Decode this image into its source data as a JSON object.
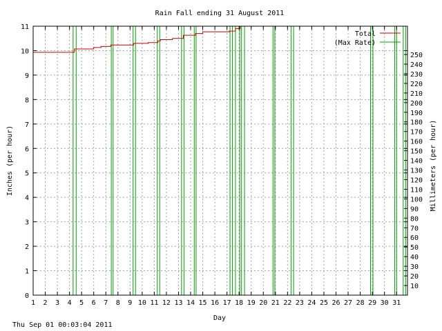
{
  "chart_data": {
    "type": "line",
    "title": "Rain Fall ending 31 August 2011",
    "xlabel": "Day",
    "ylabel": "Inches (per hour)",
    "y2label": "Millimeters (per hour)",
    "xlim": [
      1,
      31.9
    ],
    "ylim": [
      0,
      11
    ],
    "y2lim": [
      0,
      279.4
    ],
    "x_ticks": [
      1,
      2,
      3,
      4,
      5,
      6,
      7,
      8,
      9,
      10,
      11,
      12,
      13,
      14,
      15,
      16,
      17,
      18,
      19,
      20,
      21,
      22,
      23,
      24,
      25,
      26,
      27,
      28,
      29,
      30,
      31
    ],
    "y_ticks": [
      0,
      1,
      2,
      3,
      4,
      5,
      6,
      7,
      8,
      9,
      10,
      11
    ],
    "y2_ticks": [
      10,
      20,
      30,
      40,
      50,
      60,
      70,
      80,
      90,
      100,
      110,
      120,
      130,
      140,
      150,
      160,
      170,
      180,
      190,
      200,
      210,
      220,
      230,
      240,
      250
    ],
    "grid": true,
    "legend_position": "top-right",
    "colors": {
      "total": "#cc0000",
      "max_rate": "#00a000",
      "grid": "#a0a0a0"
    },
    "series": [
      {
        "name": "Total",
        "color": "#cc0000",
        "x": [
          1.0,
          4.2,
          4.4,
          5.0,
          6.0,
          6.6,
          7.4,
          8.0,
          9.3,
          10.5,
          11.3,
          11.5,
          12.5,
          13.4,
          14.4,
          15.0,
          17.2,
          17.7,
          18.1,
          31.9
        ],
        "y": [
          9.93,
          9.93,
          10.07,
          10.07,
          10.13,
          10.17,
          10.23,
          10.23,
          10.3,
          10.33,
          10.4,
          10.45,
          10.5,
          10.63,
          10.7,
          10.77,
          10.8,
          10.9,
          11.0,
          11.0
        ]
      },
      {
        "name": "(Max Rate)",
        "color": "#00a000",
        "bars": [
          {
            "x0": 4.3,
            "x1": 4.55,
            "y": 11
          },
          {
            "x0": 7.45,
            "x1": 7.6,
            "y": 11
          },
          {
            "x0": 9.25,
            "x1": 9.45,
            "y": 11
          },
          {
            "x0": 11.25,
            "x1": 11.45,
            "y": 11
          },
          {
            "x0": 13.25,
            "x1": 13.45,
            "y": 11
          },
          {
            "x0": 14.3,
            "x1": 14.45,
            "y": 11
          },
          {
            "x0": 17.25,
            "x1": 17.45,
            "y": 11
          },
          {
            "x0": 17.7,
            "x1": 18.05,
            "y": 11
          },
          {
            "x0": 18.2,
            "x1": 18.45,
            "y": 11
          },
          {
            "x0": 20.8,
            "x1": 20.95,
            "y": 11
          },
          {
            "x0": 22.3,
            "x1": 22.5,
            "y": 11
          },
          {
            "x0": 28.85,
            "x1": 29.05,
            "y": 11
          },
          {
            "x0": 30.85,
            "x1": 31.0,
            "y": 11
          },
          {
            "x0": 31.55,
            "x1": 31.75,
            "y": 11
          }
        ]
      }
    ]
  },
  "footer": {
    "timestamp": "Thu Sep 01 00:03:04 2011"
  }
}
